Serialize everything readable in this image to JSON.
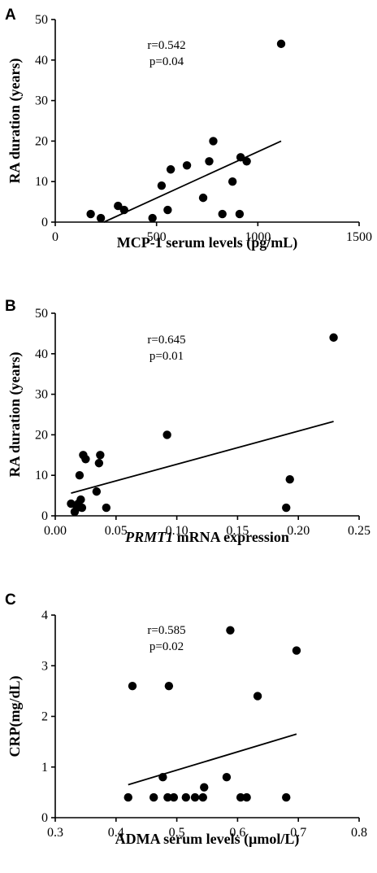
{
  "chart_data": [
    {
      "type": "scatter",
      "panel_label": "A",
      "xlabel": "MCP-1 serum levels (pg/mL)",
      "xlabel_italic_prefix": "",
      "ylabel": "RA duration (years)",
      "xlim": [
        0,
        1500
      ],
      "ylim": [
        0,
        50
      ],
      "xticks": [
        0,
        500,
        1000,
        1500
      ],
      "xtick_labels": [
        "0",
        "500",
        "1000",
        "1500"
      ],
      "yticks": [
        0,
        10,
        20,
        30,
        40,
        50
      ],
      "ytick_labels": [
        "0",
        "10",
        "20",
        "30",
        "40",
        "50"
      ],
      "stats": [
        "r=0.542",
        "p=0.04"
      ],
      "points": [
        {
          "x": 175,
          "y": 2
        },
        {
          "x": 225,
          "y": 1
        },
        {
          "x": 310,
          "y": 4
        },
        {
          "x": 340,
          "y": 3
        },
        {
          "x": 480,
          "y": 1
        },
        {
          "x": 525,
          "y": 9
        },
        {
          "x": 555,
          "y": 3
        },
        {
          "x": 570,
          "y": 13
        },
        {
          "x": 650,
          "y": 14
        },
        {
          "x": 730,
          "y": 6
        },
        {
          "x": 760,
          "y": 15
        },
        {
          "x": 780,
          "y": 20
        },
        {
          "x": 825,
          "y": 2
        },
        {
          "x": 875,
          "y": 10
        },
        {
          "x": 910,
          "y": 2
        },
        {
          "x": 915,
          "y": 16
        },
        {
          "x": 945,
          "y": 15
        },
        {
          "x": 1115,
          "y": 44
        }
      ],
      "fit_line": [
        {
          "x": 240,
          "y": 0
        },
        {
          "x": 1115,
          "y": 20
        }
      ]
    },
    {
      "type": "scatter",
      "panel_label": "B",
      "xlabel": " mRNA expression",
      "xlabel_italic_prefix": "PRMT1",
      "ylabel": "RA duration (years)",
      "xlim": [
        0.0,
        0.25
      ],
      "ylim": [
        0,
        50
      ],
      "xticks": [
        0.0,
        0.05,
        0.1,
        0.15,
        0.2,
        0.25
      ],
      "xtick_labels": [
        "0.00",
        "0.05",
        "0.10",
        "0.15",
        "0.20",
        "0.25"
      ],
      "yticks": [
        0,
        10,
        20,
        30,
        40,
        50
      ],
      "ytick_labels": [
        "0",
        "10",
        "20",
        "30",
        "40",
        "50"
      ],
      "stats": [
        "r=0.645",
        "p=0.01"
      ],
      "points": [
        {
          "x": 0.013,
          "y": 3
        },
        {
          "x": 0.016,
          "y": 1
        },
        {
          "x": 0.018,
          "y": 2
        },
        {
          "x": 0.019,
          "y": 3
        },
        {
          "x": 0.02,
          "y": 10
        },
        {
          "x": 0.021,
          "y": 4
        },
        {
          "x": 0.022,
          "y": 2
        },
        {
          "x": 0.023,
          "y": 15
        },
        {
          "x": 0.025,
          "y": 14
        },
        {
          "x": 0.034,
          "y": 6
        },
        {
          "x": 0.036,
          "y": 13
        },
        {
          "x": 0.037,
          "y": 15
        },
        {
          "x": 0.042,
          "y": 2
        },
        {
          "x": 0.092,
          "y": 20
        },
        {
          "x": 0.19,
          "y": 2
        },
        {
          "x": 0.193,
          "y": 9
        },
        {
          "x": 0.229,
          "y": 44
        }
      ],
      "fit_line": [
        {
          "x": 0.013,
          "y": 5.6
        },
        {
          "x": 0.229,
          "y": 23.3
        }
      ]
    },
    {
      "type": "scatter",
      "panel_label": "C",
      "xlabel": "ADMA serum levels (μmol/L)",
      "xlabel_italic_prefix": "",
      "ylabel": "CRP(mg/dL)",
      "xlim": [
        0.3,
        0.8
      ],
      "ylim": [
        0,
        4
      ],
      "xticks": [
        0.3,
        0.4,
        0.5,
        0.6,
        0.7,
        0.8
      ],
      "xtick_labels": [
        "0.3",
        "0.4",
        "0.5",
        "0.6",
        "0.7",
        "0.8"
      ],
      "yticks": [
        0,
        1,
        2,
        3,
        4
      ],
      "ytick_labels": [
        "0",
        "1",
        "2",
        "3",
        "4"
      ],
      "stats": [
        "r=0.585",
        "p=0.02"
      ],
      "points": [
        {
          "x": 0.42,
          "y": 0.4
        },
        {
          "x": 0.427,
          "y": 2.6
        },
        {
          "x": 0.462,
          "y": 0.4
        },
        {
          "x": 0.477,
          "y": 0.8
        },
        {
          "x": 0.485,
          "y": 0.4
        },
        {
          "x": 0.487,
          "y": 2.6
        },
        {
          "x": 0.495,
          "y": 0.4
        },
        {
          "x": 0.515,
          "y": 0.4
        },
        {
          "x": 0.53,
          "y": 0.4
        },
        {
          "x": 0.543,
          "y": 0.4
        },
        {
          "x": 0.545,
          "y": 0.6
        },
        {
          "x": 0.582,
          "y": 0.8
        },
        {
          "x": 0.588,
          "y": 3.7
        },
        {
          "x": 0.605,
          "y": 0.4
        },
        {
          "x": 0.615,
          "y": 0.4
        },
        {
          "x": 0.633,
          "y": 2.4
        },
        {
          "x": 0.68,
          "y": 0.4
        },
        {
          "x": 0.697,
          "y": 3.3
        }
      ],
      "fit_line": [
        {
          "x": 0.42,
          "y": 0.65
        },
        {
          "x": 0.697,
          "y": 1.65
        }
      ]
    }
  ]
}
